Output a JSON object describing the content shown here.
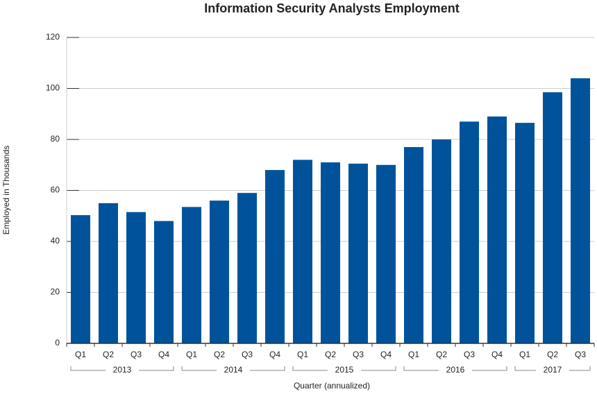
{
  "chart_data": {
    "type": "bar",
    "title": "Information Security Analysts Employment",
    "x_label": "Quarter (annualized)",
    "y_label": "Employed in Thousands",
    "categories": [
      "Q1",
      "Q2",
      "Q3",
      "Q4",
      "Q1",
      "Q2",
      "Q3",
      "Q4",
      "Q1",
      "Q2",
      "Q3",
      "Q4",
      "Q1",
      "Q2",
      "Q3",
      "Q4",
      "Q1",
      "Q2",
      "Q3"
    ],
    "groups": [
      "2013",
      "2014",
      "2015",
      "2016",
      "2017"
    ],
    "values": [
      50.3,
      55,
      51.5,
      48,
      53.5,
      56,
      59,
      68,
      72,
      71,
      70.5,
      70,
      77,
      80,
      87,
      89,
      86.5,
      98.5,
      104
    ],
    "color": "#00539b",
    "ylim": [
      0,
      120
    ],
    "yticks": [
      0,
      20,
      40,
      60,
      80,
      100,
      120
    ],
    "grid": true
  }
}
